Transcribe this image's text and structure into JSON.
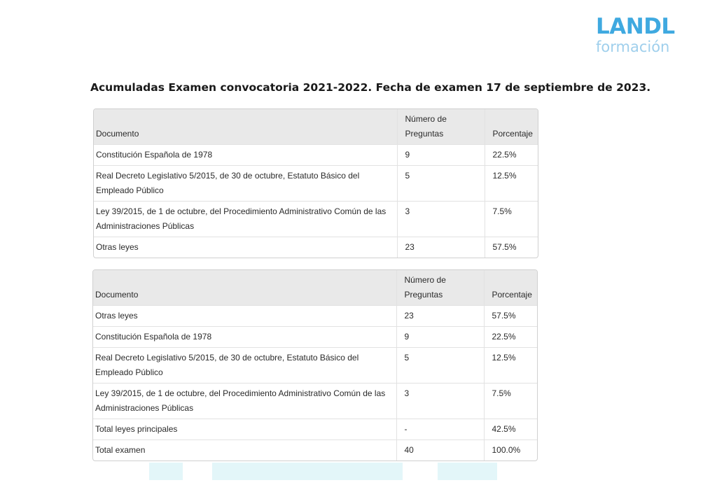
{
  "logo": {
    "main": "LANDL",
    "sub": "formación"
  },
  "title": "Acumuladas Examen convocatoria 2021-2022. Fecha de examen 17 de septiembre de 2023.",
  "table1": {
    "headers": [
      "Documento",
      "Número de Preguntas",
      "Porcentaje"
    ],
    "rows": [
      [
        "Constitución Española de 1978",
        "9",
        "22.5%"
      ],
      [
        "Real Decreto Legislativo 5/2015, de 30 de octubre, Estatuto Básico del Empleado Público",
        "5",
        "12.5%"
      ],
      [
        "Ley 39/2015, de 1 de octubre, del Procedimiento Administrativo Común de las Administraciones Públicas",
        "3",
        "7.5%"
      ],
      [
        "Otras leyes",
        "23",
        "57.5%"
      ]
    ]
  },
  "table2": {
    "headers": [
      "Documento",
      "Número de Preguntas",
      "Porcentaje"
    ],
    "rows": [
      [
        "Otras leyes",
        "23",
        "57.5%"
      ],
      [
        "Constitución Española de 1978",
        "9",
        "22.5%"
      ],
      [
        "Real Decreto Legislativo 5/2015, de 30 de octubre, Estatuto Básico del Empleado Público",
        "5",
        "12.5%"
      ],
      [
        "Ley 39/2015, de 1 de octubre, del Procedimiento Administrativo Común de las Administraciones Públicas",
        "3",
        "7.5%"
      ],
      [
        "Total leyes principales",
        "-",
        "42.5%"
      ],
      [
        "Total examen",
        "40",
        "100.0%"
      ]
    ]
  },
  "colors": {
    "logo_main": "#3fa9e0",
    "logo_sub": "#9fcfec",
    "header_bg": "#e9e9e9",
    "watermark": "#e3f6f9"
  }
}
